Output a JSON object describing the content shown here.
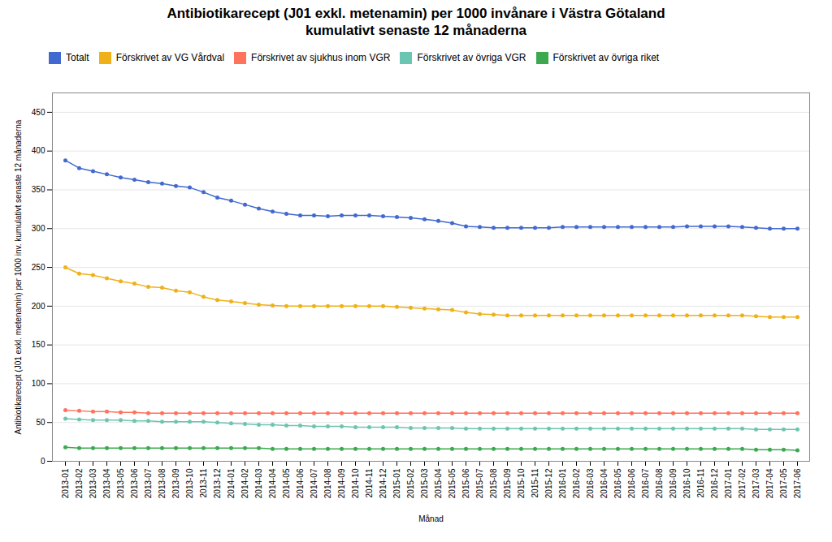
{
  "chart_data": {
    "type": "line",
    "title": "Antibiotikarecept (J01 exkl. metenamin) per 1000 invånare i Västra Götaland\nkumulativt senaste 12 månaderna",
    "xlabel": "Månad",
    "ylabel": "Antibiotikarecept (J01 exkl. metenamin) per 1000 inv. kumulativt senaste 12 månaderna",
    "categories": [
      "2013-01",
      "2013-02",
      "2013-03",
      "2013-04",
      "2013-05",
      "2013-06",
      "2013-07",
      "2013-08",
      "2013-09",
      "2013-10",
      "2013-11",
      "2013-12",
      "2014-01",
      "2014-02",
      "2014-03",
      "2014-04",
      "2014-05",
      "2014-06",
      "2014-07",
      "2014-08",
      "2014-09",
      "2014-10",
      "2014-11",
      "2014-12",
      "2015-01",
      "2015-02",
      "2015-03",
      "2015-04",
      "2015-05",
      "2015-06",
      "2015-07",
      "2015-08",
      "2015-09",
      "2015-10",
      "2015-11",
      "2015-12",
      "2016-01",
      "2016-02",
      "2016-03",
      "2016-04",
      "2016-05",
      "2016-06",
      "2016-07",
      "2016-08",
      "2016-09",
      "2016-10",
      "2016-11",
      "2016-12",
      "2017-01",
      "2017-02",
      "2017-03",
      "2017-04",
      "2017-05",
      "2017-06"
    ],
    "series": [
      {
        "name": "Totalt",
        "values": [
          388,
          378,
          374,
          370,
          366,
          363,
          360,
          358,
          355,
          353,
          347,
          340,
          336,
          331,
          326,
          322,
          319,
          317,
          317,
          316,
          317,
          317,
          317,
          316,
          315,
          314,
          312,
          310,
          307,
          303,
          302,
          301,
          301,
          301,
          301,
          301,
          302,
          302,
          302,
          302,
          302,
          302,
          302,
          302,
          302,
          303,
          303,
          303,
          303,
          302,
          301,
          300,
          300,
          300
        ]
      },
      {
        "name": "Förskrivet av VG Vårdval",
        "values": [
          250,
          242,
          240,
          236,
          232,
          229,
          225,
          224,
          220,
          218,
          212,
          208,
          206,
          204,
          202,
          201,
          200,
          200,
          200,
          200,
          200,
          200,
          200,
          200,
          199,
          198,
          197,
          196,
          195,
          192,
          190,
          189,
          188,
          188,
          188,
          188,
          188,
          188,
          188,
          188,
          188,
          188,
          188,
          188,
          188,
          188,
          188,
          188,
          188,
          188,
          187,
          186,
          186,
          186
        ]
      },
      {
        "name": "Förskrivet av sjukhus inom VGR",
        "values": [
          66,
          65,
          64,
          64,
          63,
          63,
          62,
          62,
          62,
          62,
          62,
          62,
          62,
          62,
          62,
          62,
          62,
          62,
          62,
          62,
          62,
          62,
          62,
          62,
          62,
          62,
          62,
          62,
          62,
          62,
          62,
          62,
          62,
          62,
          62,
          62,
          62,
          62,
          62,
          62,
          62,
          62,
          62,
          62,
          62,
          62,
          62,
          62,
          62,
          62,
          62,
          62,
          62,
          62
        ]
      },
      {
        "name": "Förskrivet av övriga VGR",
        "values": [
          55,
          54,
          53,
          53,
          53,
          52,
          52,
          51,
          51,
          51,
          51,
          50,
          49,
          48,
          47,
          47,
          46,
          46,
          45,
          45,
          45,
          44,
          44,
          44,
          44,
          43,
          43,
          43,
          43,
          42,
          42,
          42,
          42,
          42,
          42,
          42,
          42,
          42,
          42,
          42,
          42,
          42,
          42,
          42,
          42,
          42,
          42,
          42,
          42,
          42,
          41,
          41,
          41,
          41
        ]
      },
      {
        "name": "Förskrivet av övriga riket",
        "values": [
          18,
          17,
          17,
          17,
          17,
          17,
          17,
          17,
          17,
          17,
          17,
          17,
          17,
          17,
          17,
          16,
          16,
          16,
          16,
          16,
          16,
          16,
          16,
          16,
          16,
          16,
          16,
          16,
          16,
          16,
          16,
          16,
          16,
          16,
          16,
          16,
          16,
          16,
          16,
          16,
          16,
          16,
          16,
          16,
          16,
          16,
          16,
          16,
          16,
          16,
          15,
          15,
          15,
          14
        ]
      }
    ],
    "ylim": [
      0,
      475
    ],
    "yticks": [
      0,
      50,
      100,
      150,
      200,
      250,
      300,
      350,
      400,
      450
    ],
    "grid": true,
    "legend": "top",
    "marker": "circle"
  }
}
